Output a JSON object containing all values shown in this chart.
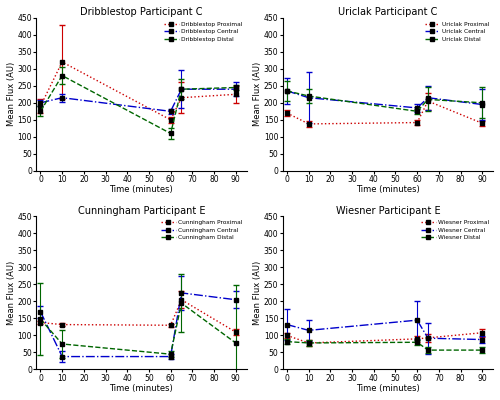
{
  "subplots": [
    {
      "title": "Dribblestop Participant C",
      "legend_labels": [
        "Dribblestop Proximal",
        "Dribblestop Central",
        "Dribblestop Distal"
      ],
      "x": [
        0,
        10,
        60,
        65,
        90
      ],
      "proximal": {
        "y": [
          190,
          320,
          150,
          215,
          225
        ],
        "sd": [
          20,
          110,
          8,
          45,
          25
        ]
      },
      "central": {
        "y": [
          200,
          215,
          175,
          240,
          240
        ],
        "sd": [
          8,
          12,
          8,
          55,
          20
        ]
      },
      "distal": {
        "y": [
          175,
          280,
          110,
          240,
          245
        ],
        "sd": [
          15,
          25,
          15,
          30,
          8
        ]
      }
    },
    {
      "title": "Uriclak Participant C",
      "legend_labels": [
        "Uriclak Proximal",
        "Uriclak Central",
        "Uriclak Distal"
      ],
      "x": [
        0,
        10,
        60,
        65,
        90
      ],
      "proximal": {
        "y": [
          170,
          138,
          142,
          205,
          140
        ],
        "sd": [
          8,
          8,
          8,
          25,
          8
        ]
      },
      "central": {
        "y": [
          235,
          215,
          185,
          215,
          195
        ],
        "sd": [
          38,
          75,
          12,
          35,
          45
        ]
      },
      "distal": {
        "y": [
          235,
          220,
          175,
          210,
          200
        ],
        "sd": [
          30,
          22,
          8,
          35,
          45
        ]
      }
    },
    {
      "title": "Cunningham Participant E",
      "legend_labels": [
        "Cunningham Proximal",
        "Cunningham Central",
        "Cunningham Distal"
      ],
      "x": [
        0,
        10,
        60,
        65,
        90
      ],
      "proximal": {
        "y": [
          138,
          132,
          130,
          205,
          110
        ],
        "sd": [
          5,
          5,
          5,
          25,
          8
        ]
      },
      "central": {
        "y": [
          170,
          38,
          38,
          225,
          205
        ],
        "sd": [
          18,
          15,
          8,
          50,
          25
        ]
      },
      "distal": {
        "y": [
          148,
          75,
          45,
          195,
          78
        ],
        "sd": [
          105,
          40,
          8,
          85,
          170
        ]
      }
    },
    {
      "title": "Wiesner Participant E",
      "legend_labels": [
        "Wiesner Proximal",
        "Wiesner Central",
        "Wiesner Distal"
      ],
      "x": [
        0,
        10,
        60,
        65,
        90
      ],
      "proximal": {
        "y": [
          100,
          78,
          90,
          93,
          108
        ],
        "sd": [
          8,
          8,
          8,
          12,
          12
        ]
      },
      "central": {
        "y": [
          132,
          115,
          145,
          92,
          88
        ],
        "sd": [
          45,
          30,
          55,
          45,
          10
        ]
      },
      "distal": {
        "y": [
          82,
          78,
          80,
          57,
          57
        ],
        "sd": [
          8,
          8,
          8,
          8,
          8
        ]
      }
    }
  ],
  "colors": {
    "proximal": "#cc0000",
    "central": "#0000cc",
    "distal": "#006600"
  },
  "ylim": [
    0,
    450
  ],
  "yticks": [
    0,
    50,
    100,
    150,
    200,
    250,
    300,
    350,
    400,
    450
  ],
  "xticks": [
    0,
    10,
    20,
    30,
    40,
    50,
    60,
    70,
    80,
    90
  ],
  "xlabel": "Time (minutes)",
  "ylabel": "Mean Flux (AU)"
}
